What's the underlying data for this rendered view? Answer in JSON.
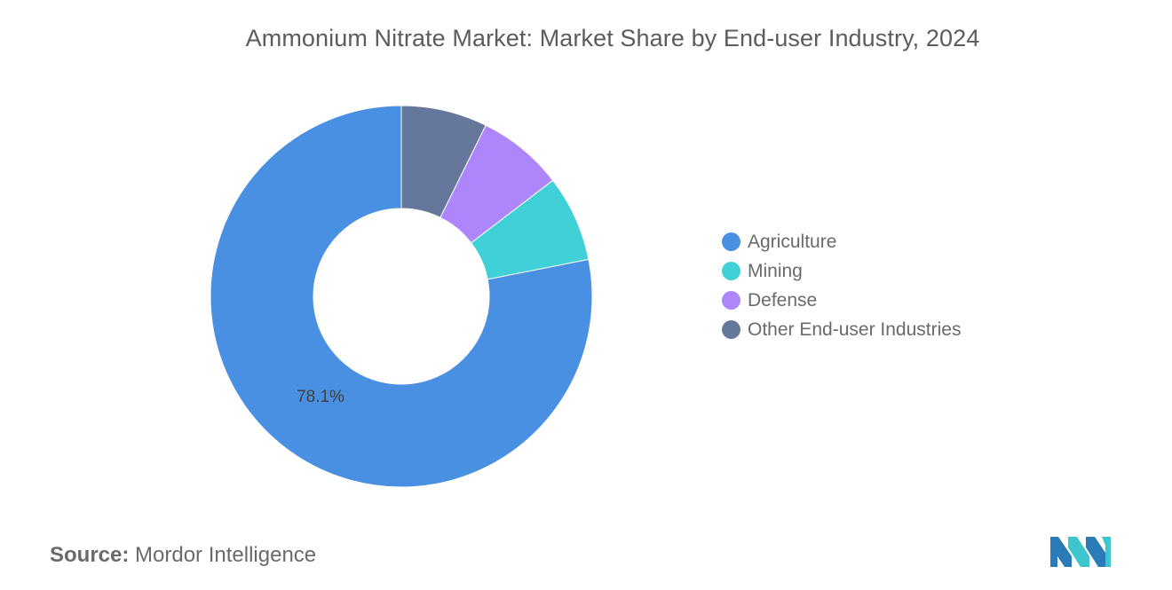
{
  "chart_data": {
    "type": "pie",
    "title": "Ammonium Nitrate Market: Market Share by End-user Industry, 2024",
    "donut": true,
    "categories": [
      "Agriculture",
      "Mining",
      "Defense",
      "Other End-user Industries"
    ],
    "values": [
      78.1,
      7.3,
      7.3,
      7.3
    ],
    "colors": [
      "#4a90e2",
      "#3fd0d8",
      "#ad86fc",
      "#65789b"
    ],
    "data_labels": [
      "78.1%",
      "",
      "",
      ""
    ],
    "legend_position": "right"
  },
  "source": {
    "label": "Source:",
    "text": "Mordor Intelligence"
  },
  "logo": {
    "icon": "mordor-intelligence-logo",
    "colors": [
      "#2a7bb7",
      "#3fc5cd"
    ]
  }
}
